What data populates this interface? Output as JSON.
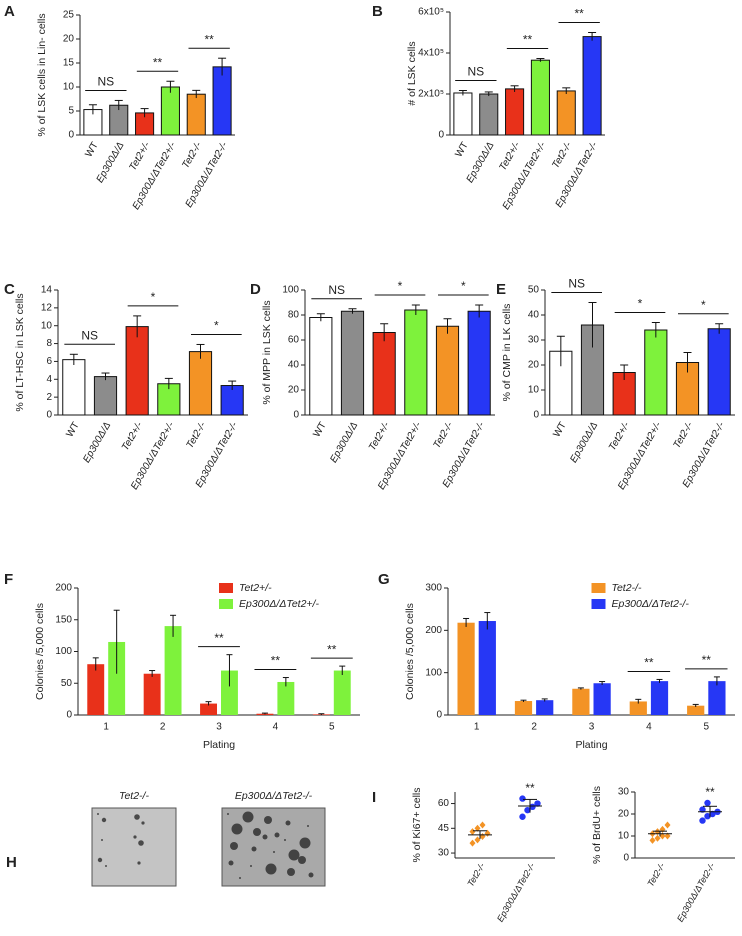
{
  "chart_data": [
    {
      "type": "bar",
      "panel": "A",
      "ylabel": "% of LSK cells in Lin- cells",
      "categories": [
        "WT",
        "Ep300Δ/Δ",
        "Tet2+/-",
        "Ep300Δ/ΔTet2+/-",
        "Tet2-/-",
        "Ep300Δ/ΔTet2-/-"
      ],
      "colors": [
        "#ffffff",
        "#8c8c8c",
        "#e8311a",
        "#7ef23c",
        "#f39325",
        "#2637f5"
      ],
      "values": [
        5.3,
        6.2,
        4.6,
        10,
        8.5,
        14.2
      ],
      "errors": [
        1,
        1,
        0.9,
        1.2,
        0.8,
        1.8
      ],
      "ylim": [
        0,
        25
      ],
      "yticks": [
        0,
        5,
        10,
        15,
        20,
        25
      ],
      "annotations": [
        "NS",
        "**",
        "**"
      ]
    },
    {
      "type": "bar",
      "panel": "B",
      "ylabel": "# of LSK cells",
      "categories": [
        "WT",
        "Ep300Δ/Δ",
        "Tet2+/-",
        "Ep300Δ/ΔTet2+/-",
        "Tet2-/-",
        "Ep300Δ/ΔTet2-/-"
      ],
      "colors": [
        "#ffffff",
        "#8c8c8c",
        "#e8311a",
        "#7ef23c",
        "#f39325",
        "#2637f5"
      ],
      "values": [
        205000,
        200000,
        225000,
        365000,
        215000,
        480000
      ],
      "errors": [
        12000,
        10000,
        15000,
        8000,
        15000,
        20000
      ],
      "ylim": [
        0,
        600000
      ],
      "yticks": [
        0,
        {
          "value": 200000,
          "label": "2x10⁵"
        },
        {
          "value": 400000,
          "label": "4x10⁵"
        },
        {
          "value": 600000,
          "label": "6x10⁵"
        }
      ],
      "annotations": [
        "NS",
        "**",
        "**"
      ]
    },
    {
      "type": "bar",
      "panel": "C",
      "ylabel": "% of LT-HSC in LSK cells",
      "categories": [
        "WT",
        "Ep300Δ/Δ",
        "Tet2+/-",
        "Ep300Δ/ΔTet2+/-",
        "Tet2-/-",
        "Ep300Δ/ΔTet2-/-"
      ],
      "colors": [
        "#ffffff",
        "#8c8c8c",
        "#e8311a",
        "#7ef23c",
        "#f39325",
        "#2637f5"
      ],
      "values": [
        6.2,
        4.3,
        9.9,
        3.5,
        7.1,
        3.3
      ],
      "errors": [
        0.6,
        0.4,
        1.2,
        0.6,
        0.8,
        0.5
      ],
      "ylim": [
        0,
        14
      ],
      "yticks": [
        0,
        2,
        4,
        6,
        8,
        10,
        12,
        14
      ],
      "annotations": [
        "NS",
        "*",
        "*"
      ]
    },
    {
      "type": "bar",
      "panel": "D",
      "ylabel": "% of MPP in LSK cells",
      "categories": [
        "WT",
        "Ep300Δ/Δ",
        "Tet2+/-",
        "Ep300Δ/ΔTet2+/-",
        "Tet2-/-",
        "Ep300Δ/ΔTet2-/-"
      ],
      "colors": [
        "#ffffff",
        "#8c8c8c",
        "#e8311a",
        "#7ef23c",
        "#f39325",
        "#2637f5"
      ],
      "values": [
        78,
        83,
        66,
        84,
        71,
        83
      ],
      "errors": [
        3,
        2,
        7,
        4,
        6,
        5
      ],
      "ylim": [
        0,
        100
      ],
      "yticks": [
        0,
        20,
        40,
        60,
        80,
        100
      ],
      "annotations": [
        "NS",
        "*",
        "*"
      ]
    },
    {
      "type": "bar",
      "panel": "E",
      "ylabel": "% of  CMP in LK cells",
      "categories": [
        "WT",
        "Ep300Δ/Δ",
        "Tet2+/-",
        "Ep300Δ/ΔTet2+/-",
        "Tet2-/-",
        "Ep300Δ/ΔTet2-/-"
      ],
      "colors": [
        "#ffffff",
        "#8c8c8c",
        "#e8311a",
        "#7ef23c",
        "#f39325",
        "#2637f5"
      ],
      "values": [
        25.5,
        36,
        17,
        34,
        21,
        34.5
      ],
      "errors": [
        6,
        9,
        3,
        3,
        4,
        2
      ],
      "ylim": [
        0,
        50
      ],
      "yticks": [
        0,
        10,
        20,
        30,
        40,
        50
      ],
      "annotations": [
        "NS",
        "*",
        "*"
      ]
    },
    {
      "type": "grouped",
      "panel": "F",
      "ylabel": "Colonies /5,000 cells",
      "xlabel": "Plating",
      "categories": [
        "1",
        "2",
        "3",
        "4",
        "5"
      ],
      "series": [
        {
          "name": "Tet2+/-",
          "color": "#e8311a",
          "values": [
            80,
            65,
            18,
            2,
            1
          ],
          "errors": [
            10,
            5,
            3,
            1,
            1
          ]
        },
        {
          "name": "Ep300Δ/ΔTet2+/-",
          "color": "#7ef23c",
          "values": [
            115,
            140,
            70,
            52,
            70
          ],
          "errors": [
            50,
            17,
            25,
            7,
            7
          ]
        }
      ],
      "ylim": [
        0,
        200
      ],
      "yticks": [
        0,
        50,
        100,
        150,
        200
      ],
      "annotations": [
        null,
        null,
        "**",
        "**",
        "**"
      ]
    },
    {
      "type": "grouped",
      "panel": "G",
      "ylabel": "Colonies /5,000 cells",
      "xlabel": "Plating",
      "categories": [
        "1",
        "2",
        "3",
        "4",
        "5"
      ],
      "series": [
        {
          "name": "Tet2-/-",
          "color": "#f39325",
          "values": [
            218,
            33,
            62,
            32,
            22
          ],
          "errors": [
            10,
            2,
            2,
            5,
            3
          ]
        },
        {
          "name": "Ep300Δ/ΔTet2-/-",
          "color": "#2637f5",
          "values": [
            222,
            35,
            75,
            80,
            80
          ],
          "errors": [
            20,
            3,
            4,
            4,
            10
          ]
        }
      ],
      "ylim": [
        0,
        300
      ],
      "yticks": [
        0,
        100,
        200,
        300
      ],
      "annotations": [
        null,
        null,
        null,
        "**",
        "**"
      ]
    },
    {
      "type": "image",
      "panel": "H",
      "labels": [
        "Tet2-/-",
        "Ep300Δ/ΔTet2-/-"
      ]
    },
    {
      "type": "dot",
      "panel": "I",
      "ylabel": "% of Ki67+ cells",
      "categories": [
        "Tet2-/-",
        "Ep300Δ/ΔTet2-/-"
      ],
      "colors": [
        "#f39325",
        "#2637f5"
      ],
      "values": [
        41,
        58.5
      ],
      "errors": [
        2.5,
        4
      ],
      "points": [
        [
          36,
          38,
          40,
          42,
          43,
          45,
          47
        ],
        [
          52,
          56,
          58,
          60,
          63
        ]
      ],
      "ylim": [
        27,
        67
      ],
      "yticks": [
        30,
        45,
        60
      ],
      "annotations": [
        null,
        "**"
      ]
    },
    {
      "type": "dot",
      "ylabel": "% of BrdU+ cells",
      "categories": [
        "Tet2-/-",
        "Ep300Δ/ΔTet2-/-"
      ],
      "colors": [
        "#f39325",
        "#2637f5"
      ],
      "values": [
        11,
        21
      ],
      "errors": [
        1.2,
        2.5
      ],
      "points": [
        [
          8,
          9,
          10,
          10,
          11,
          12,
          13,
          15
        ],
        [
          17,
          19,
          20,
          21,
          22,
          25
        ]
      ],
      "ylim": [
        0,
        30
      ],
      "yticks": [
        0,
        10,
        20,
        30
      ],
      "annotations": [
        null,
        "**"
      ]
    }
  ]
}
